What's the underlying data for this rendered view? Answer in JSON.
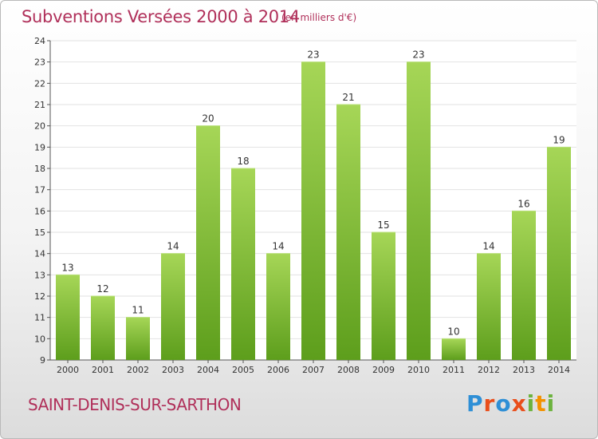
{
  "title": "Subventions Versées 2000 à 2014",
  "unit_label": "(en milliers d'€)",
  "commune": "SAINT-DENIS-SUR-SARTHON",
  "logo": {
    "letters": [
      "P",
      "r",
      "o",
      "x",
      "i",
      "t",
      "i"
    ],
    "colors": [
      "#2e8fd6",
      "#e94e1b",
      "#2e8fd6",
      "#e94e1b",
      "#6cb33e",
      "#f39200",
      "#6cb33e"
    ]
  },
  "colors": {
    "bar_top": "#a6d657",
    "bar_bottom": "#5d9e1c",
    "title": "#b0305a",
    "grid": "#e2e2e2",
    "axis": "#555555"
  },
  "chart_data": {
    "type": "bar",
    "categories": [
      "2000",
      "2001",
      "2002",
      "2003",
      "2004",
      "2005",
      "2006",
      "2007",
      "2008",
      "2009",
      "2010",
      "2011",
      "2012",
      "2013",
      "2014"
    ],
    "values": [
      13,
      12,
      11,
      14,
      20,
      18,
      14,
      23,
      21,
      15,
      23,
      10,
      14,
      16,
      19
    ],
    "ylim": [
      9,
      24
    ],
    "yticks": [
      9,
      10,
      11,
      12,
      13,
      14,
      15,
      16,
      17,
      18,
      19,
      20,
      21,
      22,
      23,
      24
    ],
    "grid": true,
    "data_labels": true
  }
}
